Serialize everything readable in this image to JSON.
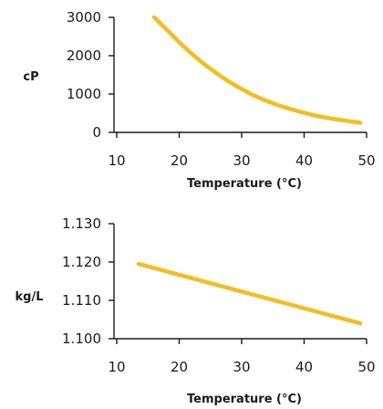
{
  "chart_data": [
    {
      "type": "line",
      "title": "",
      "xlabel": "Temperature (°C)",
      "ylabel": "cP",
      "xlim": [
        10,
        50
      ],
      "ylim": [
        0,
        3000
      ],
      "x_ticks": [
        10,
        20,
        30,
        40,
        50
      ],
      "y_ticks": [
        0,
        1000,
        2000,
        3000
      ],
      "x_tick_labels": [
        "10",
        "20",
        "30",
        "40",
        "50"
      ],
      "y_tick_labels": [
        "0",
        "1000",
        "2000",
        "3000"
      ],
      "grid": false,
      "series": [
        {
          "color": "#F2BE22",
          "x": [
            16,
            18,
            20,
            22,
            24,
            26,
            28,
            30,
            32,
            34,
            36,
            38,
            40,
            42,
            44,
            46,
            49
          ],
          "y": [
            3000,
            2680,
            2350,
            2050,
            1780,
            1540,
            1320,
            1130,
            960,
            820,
            700,
            600,
            510,
            430,
            370,
            320,
            250
          ]
        }
      ]
    },
    {
      "type": "line",
      "title": "",
      "xlabel": "Temperature (°C)",
      "ylabel": "kg/L",
      "xlim": [
        10,
        50
      ],
      "ylim": [
        1.1,
        1.13
      ],
      "x_ticks": [
        10,
        20,
        30,
        40,
        50
      ],
      "y_ticks": [
        1.1,
        1.11,
        1.12,
        1.13
      ],
      "x_tick_labels": [
        "10",
        "20",
        "30",
        "40",
        "50"
      ],
      "y_tick_labels": [
        "1.100",
        "1.110",
        "1.120",
        "1.130"
      ],
      "grid": false,
      "series": [
        {
          "color": "#F2BE22",
          "x": [
            13.5,
            49
          ],
          "y": [
            1.1195,
            1.104
          ]
        }
      ]
    }
  ]
}
